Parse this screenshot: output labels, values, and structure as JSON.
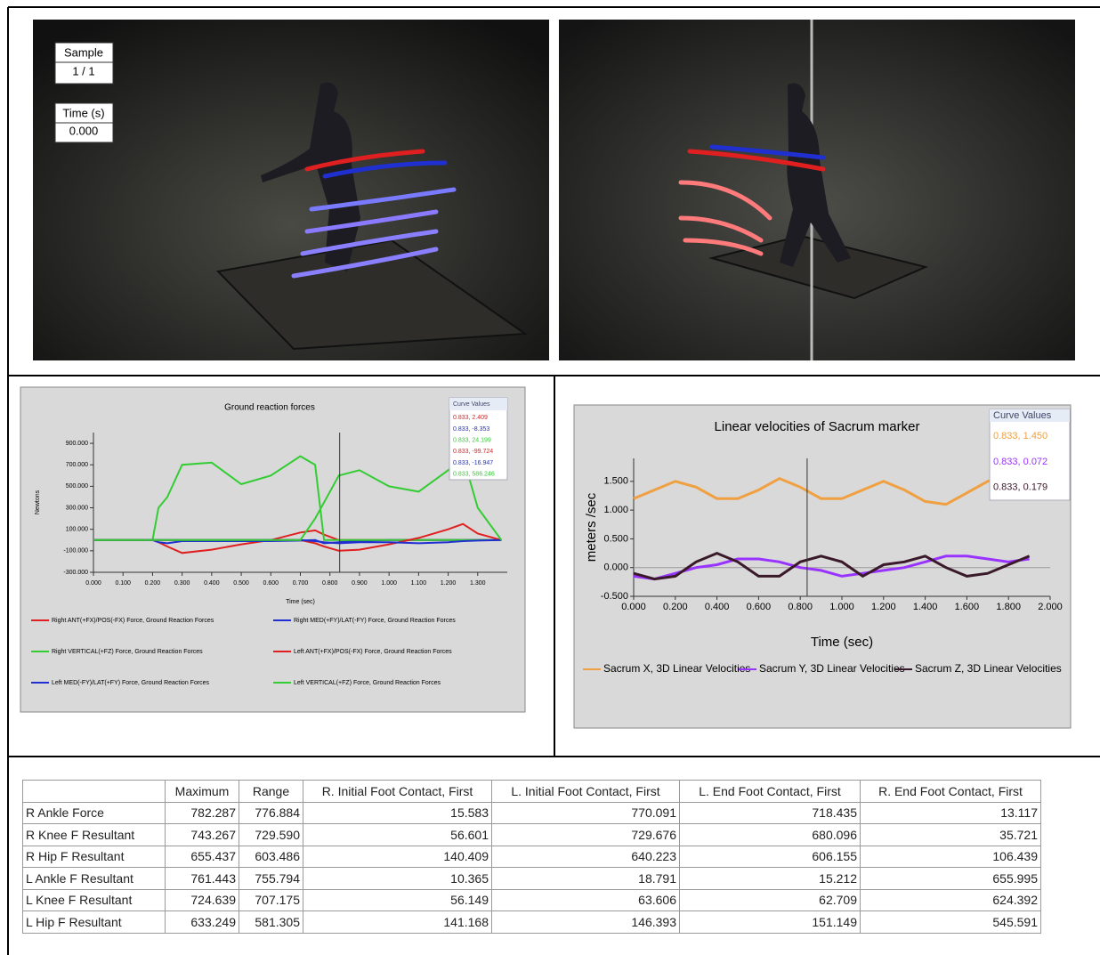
{
  "video": {
    "sample_label": "Sample",
    "sample_value": "1 / 1",
    "time_label": "Time (s)",
    "time_value": "0.000"
  },
  "chart_data": [
    {
      "type": "line",
      "title": "Ground reaction forces",
      "y_label": "Newtons",
      "x_label": "Time (sec)",
      "x": [
        0,
        0.2,
        0.22,
        0.25,
        0.3,
        0.4,
        0.5,
        0.6,
        0.7,
        0.75,
        0.78,
        0.83,
        0.9,
        1.0,
        1.1,
        1.2,
        1.25,
        1.3,
        1.38
      ],
      "series": [
        {
          "name": "Right ANT(+FX)/POS(-FX) Force, Ground Reaction Forces",
          "color": "#e02020",
          "values": [
            0,
            0,
            -20,
            -60,
            -120,
            -90,
            -40,
            0,
            70,
            90,
            50,
            0,
            0,
            0,
            0,
            0,
            0,
            0,
            0
          ]
        },
        {
          "name": "Right MED(+FY)/LAT(-FY) Force, Ground Reaction Forces",
          "color": "#2030d0",
          "values": [
            0,
            0,
            -20,
            -30,
            -10,
            -10,
            -10,
            -10,
            -5,
            0,
            -30,
            -20,
            -10,
            0,
            0,
            0,
            0,
            0,
            0
          ]
        },
        {
          "name": "Right VERTICAL(+FZ) Force, Ground Reaction Forces",
          "color": "#33cc33",
          "values": [
            0,
            0,
            300,
            400,
            700,
            720,
            520,
            600,
            780,
            700,
            0,
            0,
            0,
            0,
            0,
            0,
            0,
            0,
            0
          ]
        },
        {
          "name": "Left ANT(+FX)/POS(-FX) Force, Ground Reaction Forces",
          "color": "#e02020",
          "values": [
            0,
            0,
            0,
            0,
            0,
            0,
            0,
            0,
            0,
            -30,
            -60,
            -100,
            -90,
            -40,
            20,
            100,
            150,
            60,
            0
          ]
        },
        {
          "name": "Left MED(-FY)/LAT(+FY) Force, Ground Reaction Forces",
          "color": "#2030d0",
          "values": [
            0,
            0,
            0,
            0,
            0,
            0,
            0,
            0,
            0,
            -10,
            -20,
            -30,
            -20,
            -20,
            -30,
            -20,
            -10,
            -5,
            0
          ]
        },
        {
          "name": "Left VERTICAL(+FZ) Force, Ground Reaction Forces",
          "color": "#33cc33",
          "values": [
            0,
            0,
            0,
            0,
            0,
            0,
            0,
            0,
            0,
            200,
            350,
            600,
            650,
            500,
            450,
            650,
            780,
            300,
            0
          ]
        }
      ],
      "xlim": [
        0,
        1.4
      ],
      "xticks": [
        {
          "value": 0,
          "label": "0.000"
        },
        {
          "value": 0.1,
          "label": "0.100"
        },
        {
          "value": 0.2,
          "label": "0.200"
        },
        {
          "value": 0.3,
          "label": "0.300"
        },
        {
          "value": 0.4,
          "label": "0.400"
        },
        {
          "value": 0.5,
          "label": "0.500"
        },
        {
          "value": 0.6,
          "label": "0.600"
        },
        {
          "value": 0.7,
          "label": "0.700"
        },
        {
          "value": 0.8,
          "label": "0.800"
        },
        {
          "value": 0.9,
          "label": "0.900"
        },
        {
          "value": 1.0,
          "label": "1.000"
        },
        {
          "value": 1.1,
          "label": "1.100"
        },
        {
          "value": 1.2,
          "label": "1.200"
        },
        {
          "value": 1.3,
          "label": "1.300"
        }
      ],
      "ylim": [
        -300,
        1000
      ],
      "yticks": [
        {
          "value": -300,
          "label": "-300.000"
        },
        {
          "value": -100,
          "label": "-100.000"
        },
        {
          "value": 100,
          "label": "100.000"
        },
        {
          "value": 300,
          "label": "300.000"
        },
        {
          "value": 500,
          "label": "500.000"
        },
        {
          "value": 700,
          "label": "700.000"
        },
        {
          "value": 900,
          "label": "900.000"
        }
      ],
      "cursor_x": 0.833,
      "curve_values": {
        "title": "Curve Values",
        "entries": [
          {
            "text": "0.833,   2.409",
            "color": "#e02020"
          },
          {
            "text": "0.833,   -8.353",
            "color": "#2030d0"
          },
          {
            "text": "0.833,  24.199",
            "color": "#33cc33"
          },
          {
            "text": "0.833,  -99.724",
            "color": "#e02020"
          },
          {
            "text": "0.833,  -16.947",
            "color": "#2030d0"
          },
          {
            "text": "0.833,  586.246",
            "color": "#33cc33"
          }
        ]
      }
    },
    {
      "type": "line",
      "title": "Linear velocities of Sacrum marker",
      "y_label": "meters /sec",
      "x_label": "Time (sec)",
      "x": [
        0,
        0.1,
        0.2,
        0.3,
        0.4,
        0.5,
        0.6,
        0.7,
        0.8,
        0.9,
        1.0,
        1.1,
        1.2,
        1.3,
        1.4,
        1.5,
        1.6,
        1.7,
        1.8,
        1.9
      ],
      "series": [
        {
          "name": "Sacrum X, 3D Linear Velocities",
          "color": "#f0a040",
          "values": [
            1.2,
            1.35,
            1.5,
            1.4,
            1.2,
            1.2,
            1.35,
            1.55,
            1.4,
            1.2,
            1.2,
            1.35,
            1.5,
            1.35,
            1.15,
            1.1,
            1.3,
            1.5,
            1.6,
            1.65
          ]
        },
        {
          "name": "Sacrum Y, 3D Linear Velocities",
          "color": "#9933ff",
          "values": [
            -0.15,
            -0.2,
            -0.1,
            0.0,
            0.05,
            0.15,
            0.15,
            0.1,
            0.0,
            -0.05,
            -0.15,
            -0.1,
            -0.05,
            0.0,
            0.1,
            0.2,
            0.2,
            0.15,
            0.1,
            0.15
          ]
        },
        {
          "name": "Sacrum Z, 3D Linear Velocities",
          "color": "#3a1a2a",
          "values": [
            -0.1,
            -0.2,
            -0.15,
            0.1,
            0.25,
            0.1,
            -0.15,
            -0.15,
            0.1,
            0.2,
            0.1,
            -0.15,
            0.05,
            0.1,
            0.2,
            0.0,
            -0.15,
            -0.1,
            0.05,
            0.2
          ]
        }
      ],
      "xlim": [
        0,
        2.0
      ],
      "xticks": [
        {
          "value": 0,
          "label": "0.000"
        },
        {
          "value": 0.2,
          "label": "0.200"
        },
        {
          "value": 0.4,
          "label": "0.400"
        },
        {
          "value": 0.6,
          "label": "0.600"
        },
        {
          "value": 0.8,
          "label": "0.800"
        },
        {
          "value": 1.0,
          "label": "1.000"
        },
        {
          "value": 1.2,
          "label": "1.200"
        },
        {
          "value": 1.4,
          "label": "1.400"
        },
        {
          "value": 1.6,
          "label": "1.600"
        },
        {
          "value": 1.8,
          "label": "1.800"
        },
        {
          "value": 2.0,
          "label": "2.000"
        }
      ],
      "ylim": [
        -0.5,
        1.9
      ],
      "yticks": [
        {
          "value": -0.5,
          "label": "-0.500"
        },
        {
          "value": 0,
          "label": "0.000"
        },
        {
          "value": 0.5,
          "label": "0.500"
        },
        {
          "value": 1.0,
          "label": "1.000"
        },
        {
          "value": 1.5,
          "label": "1.500"
        }
      ],
      "cursor_x": 0.833,
      "curve_values": {
        "title": "Curve Values",
        "entries": [
          {
            "text": "0.833,   1.450",
            "color": "#f0a040"
          },
          {
            "text": "0.833,   0.072",
            "color": "#9933ff"
          },
          {
            "text": "0.833,   0.179",
            "color": "#3a1a2a"
          }
        ]
      }
    }
  ],
  "table": {
    "header": [
      "Maximum",
      "Range",
      "R. Initial Foot Contact, First",
      "L. Initial Foot Contact, First",
      "L. End Foot Contact, First",
      "R. End Foot Contact, First"
    ],
    "rows": [
      [
        "R Ankle Force",
        "782.287",
        "776.884",
        "15.583",
        "770.091",
        "718.435",
        "13.117"
      ],
      [
        "R Knee F Resultant",
        "743.267",
        "729.590",
        "56.601",
        "729.676",
        "680.096",
        "35.721"
      ],
      [
        "R Hip F Resultant",
        "655.437",
        "603.486",
        "140.409",
        "640.223",
        "606.155",
        "106.439"
      ],
      [
        "L Ankle F Resultant",
        "761.443",
        "755.794",
        "10.365",
        "18.791",
        "15.212",
        "655.995"
      ],
      [
        "L Knee F Resultant",
        "724.639",
        "707.175",
        "56.149",
        "63.606",
        "62.709",
        "624.392"
      ],
      [
        "L Hip F Resultant",
        "633.249",
        "581.305",
        "141.168",
        "146.393",
        "151.149",
        "545.591"
      ]
    ]
  }
}
